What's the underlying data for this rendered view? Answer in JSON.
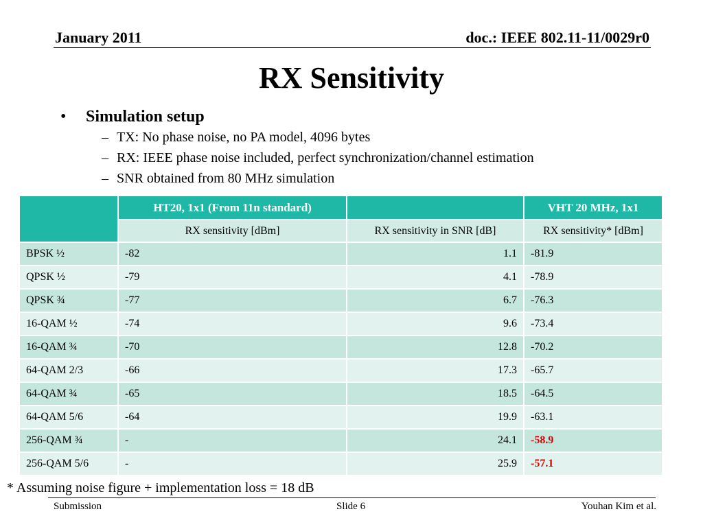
{
  "header": {
    "date": "January 2011",
    "doc_id": "doc.: IEEE 802.11-11/0029r0"
  },
  "title": "RX Sensitivity",
  "bullet": {
    "heading": "Simulation setup",
    "items": [
      "TX: No phase noise, no PA model, 4096 bytes",
      "RX: IEEE phase noise included, perfect synchronization/channel estimation",
      "SNR obtained from 80 MHz simulation"
    ]
  },
  "table": {
    "group_headers": [
      "",
      "HT20, 1x1 (From 11n standard)",
      "",
      "VHT 20 MHz, 1x1"
    ],
    "sub_headers": [
      "RX sensitivity [dBm]",
      "RX sensitivity in SNR [dB]",
      "RX sensitivity* [dBm]"
    ],
    "rows": [
      {
        "mcs": "BPSK ½",
        "ht20": "-82",
        "snr": "1.1",
        "vht": "-81.9",
        "highlight": false
      },
      {
        "mcs": "QPSK ½",
        "ht20": "-79",
        "snr": "4.1",
        "vht": "-78.9",
        "highlight": false
      },
      {
        "mcs": "QPSK ¾",
        "ht20": "-77",
        "snr": "6.7",
        "vht": "-76.3",
        "highlight": false
      },
      {
        "mcs": "16-QAM ½",
        "ht20": "-74",
        "snr": "9.6",
        "vht": "-73.4",
        "highlight": false
      },
      {
        "mcs": "16-QAM ¾",
        "ht20": "-70",
        "snr": "12.8",
        "vht": "-70.2",
        "highlight": false
      },
      {
        "mcs": "64-QAM 2/3",
        "ht20": "-66",
        "snr": "17.3",
        "vht": "-65.7",
        "highlight": false
      },
      {
        "mcs": "64-QAM ¾",
        "ht20": "-65",
        "snr": "18.5",
        "vht": "-64.5",
        "highlight": false
      },
      {
        "mcs": "64-QAM 5/6",
        "ht20": "-64",
        "snr": "19.9",
        "vht": "-63.1",
        "highlight": false
      },
      {
        "mcs": "256-QAM ¾",
        "ht20": "-",
        "snr": "24.1",
        "vht": "-58.9",
        "highlight": true
      },
      {
        "mcs": "256-QAM 5/6",
        "ht20": "-",
        "snr": "25.9",
        "vht": "-57.1",
        "highlight": true
      }
    ]
  },
  "note": "* Assuming noise figure + implementation loss = 18 dB",
  "footer": {
    "left": "Submission",
    "center": "Slide 6",
    "right": "Youhan Kim et al."
  },
  "colors": {
    "header_fill": "#1fb8a6",
    "row_dark": "#c4e6dc",
    "row_light": "#e2f2ee",
    "highlight_text": "#e00000"
  }
}
